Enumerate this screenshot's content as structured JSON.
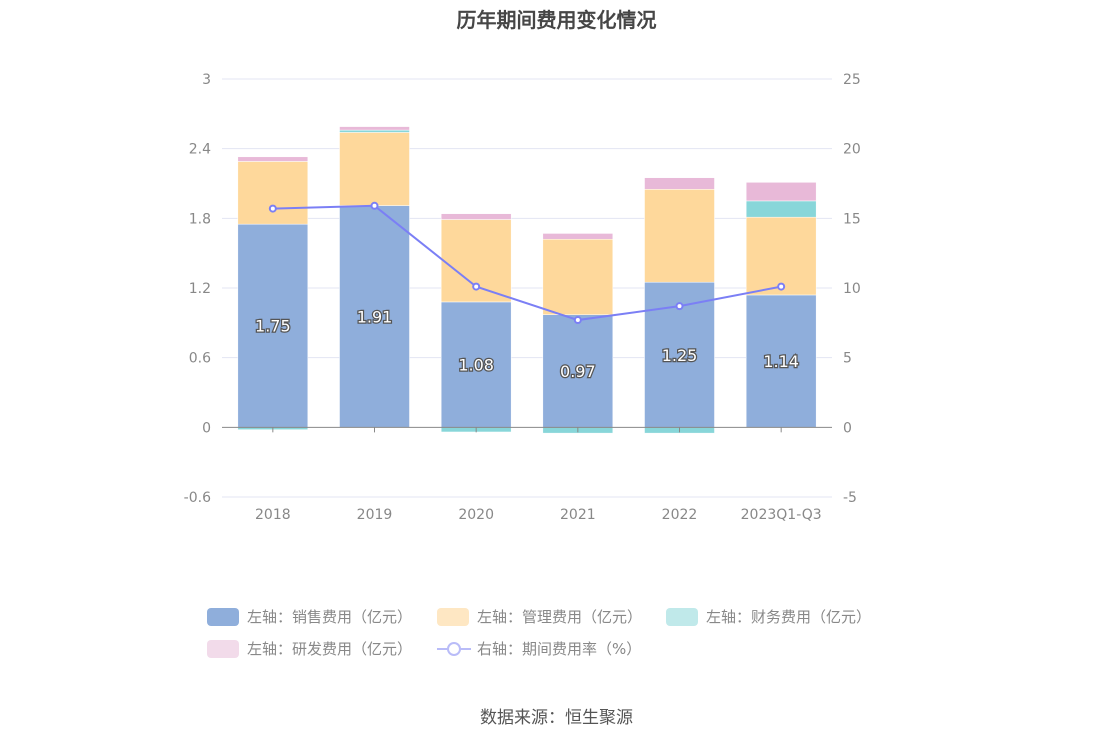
{
  "chart_data": {
    "type": "bar",
    "title": "历年期间费用变化情况",
    "categories": [
      "2018",
      "2019",
      "2020",
      "2021",
      "2022",
      "2023Q1-Q3"
    ],
    "left_axis": {
      "ylim": [
        -0.6,
        3
      ],
      "ticks": [
        "-0.6",
        "0",
        "0.6",
        "1.2",
        "1.8",
        "2.4",
        "3"
      ]
    },
    "right_axis": {
      "ylim": [
        -5,
        25
      ],
      "ticks": [
        "-5",
        "0",
        "5",
        "10",
        "15",
        "20",
        "25"
      ]
    },
    "series": [
      {
        "name": "左轴：销售费用（亿元）",
        "type": "bar",
        "axis": "left",
        "color": "#8faedb",
        "values": [
          1.75,
          1.91,
          1.08,
          0.97,
          1.25,
          1.14
        ],
        "labels": [
          "1.75",
          "1.91",
          "1.08",
          "0.97",
          "1.25",
          "1.14"
        ]
      },
      {
        "name": "左轴：管理费用（亿元）",
        "type": "bar",
        "axis": "left",
        "color": "#fed89b",
        "values": [
          0.54,
          0.63,
          0.71,
          0.65,
          0.8,
          0.67
        ]
      },
      {
        "name": "左轴：财务费用（亿元）",
        "type": "bar",
        "axis": "left",
        "color": "#88d6d9",
        "values": [
          -0.02,
          0.02,
          -0.04,
          -0.05,
          -0.05,
          0.14
        ]
      },
      {
        "name": "左轴：研发费用（亿元）",
        "type": "bar",
        "axis": "left",
        "color": "#e8b9d8",
        "values": [
          0.04,
          0.03,
          0.05,
          0.05,
          0.1,
          0.16
        ]
      },
      {
        "name": "右轴：期间费用率（%）",
        "type": "line",
        "axis": "right",
        "color": "#7b7ff5",
        "values": [
          15.7,
          15.9,
          10.1,
          7.7,
          8.7,
          10.1
        ]
      }
    ],
    "grid": true,
    "legend_position": "bottom"
  },
  "source": "数据来源：恒生聚源"
}
